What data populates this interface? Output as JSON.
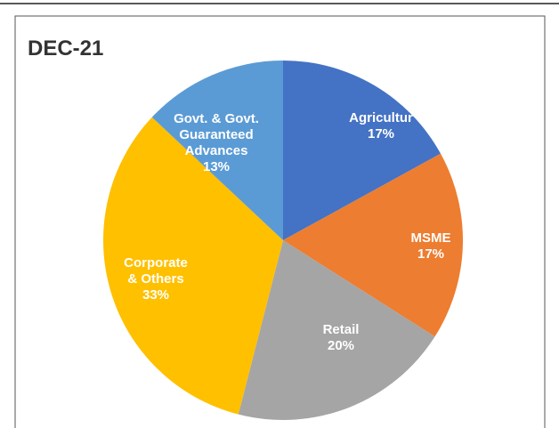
{
  "chart_data": {
    "type": "pie",
    "title": "DEC-21",
    "categories": [
      "Agricultur",
      "MSME",
      "Retail",
      "Corporate\n& Others",
      "Govt. & Govt.\nGuaranteed\nAdvances"
    ],
    "values": [
      17,
      17,
      20,
      33,
      13
    ],
    "value_labels": [
      "17%",
      "17%",
      "20%",
      "33%",
      "13%"
    ],
    "colors": [
      "#4472c4",
      "#ed7d31",
      "#a5a5a5",
      "#ffc000",
      "#5b9bd5"
    ]
  }
}
